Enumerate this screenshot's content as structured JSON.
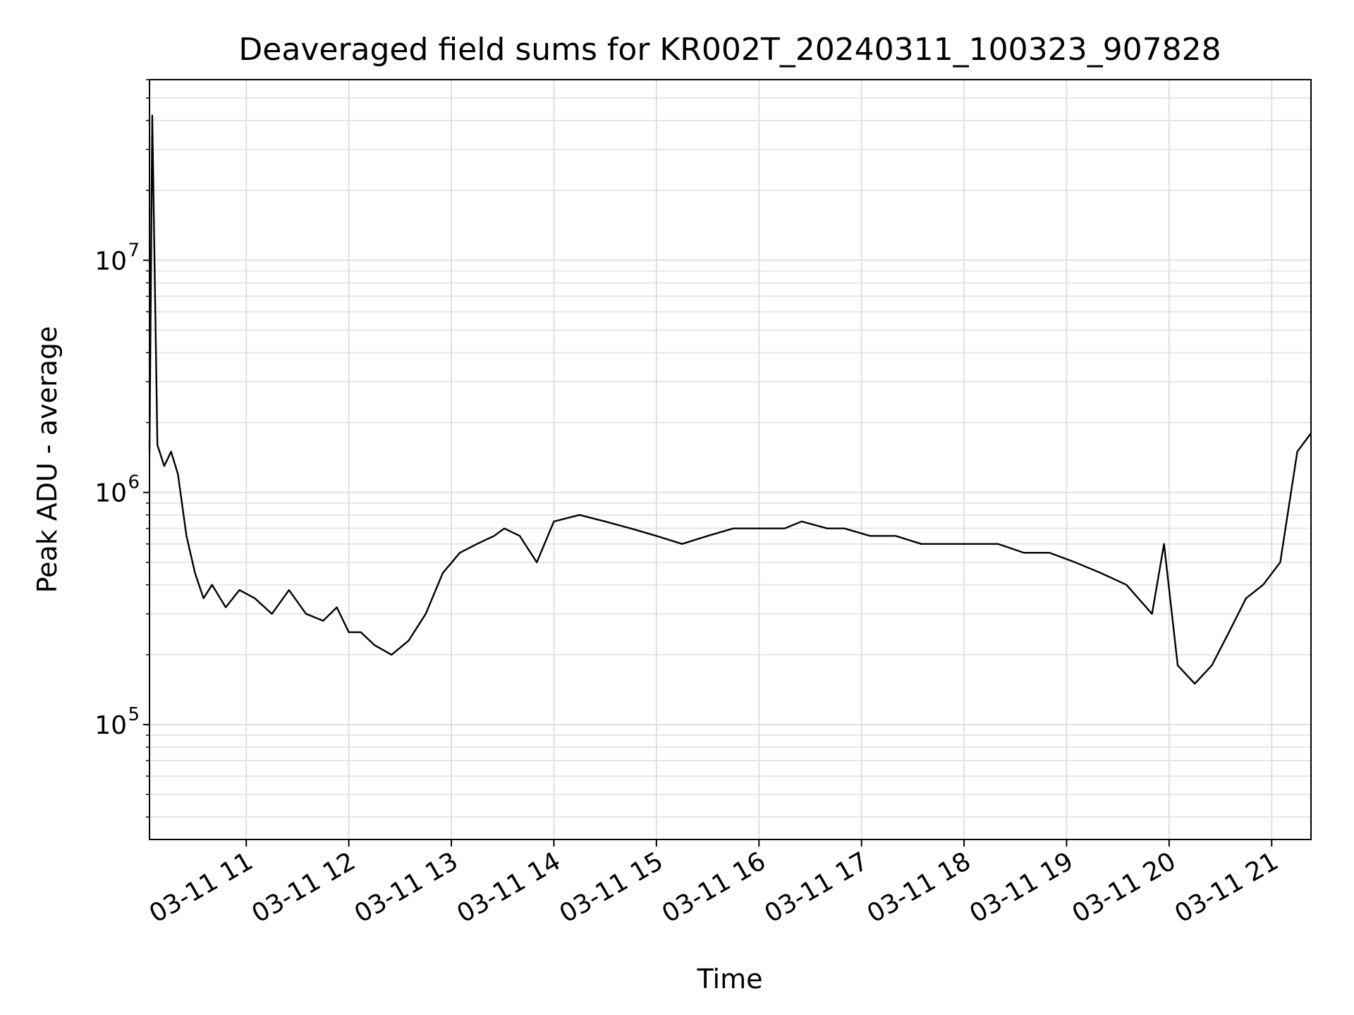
{
  "chart_data": {
    "type": "line",
    "title": "Deaveraged field sums for KR002T_20240311_100323_907828",
    "xlabel": "Time",
    "ylabel": "Peak ADU - average",
    "yscale": "log",
    "ylim": [
      32000,
      60000000
    ],
    "xlim": [
      "2024-03-11T10:03:23",
      "2024-03-11T21:23:00"
    ],
    "grid": true,
    "line_color": "#000000",
    "x_ticks": [
      "03-11 11",
      "03-11 12",
      "03-11 13",
      "03-11 14",
      "03-11 15",
      "03-11 16",
      "03-11 17",
      "03-11 18",
      "03-11 19",
      "03-11 20",
      "03-11 21"
    ],
    "y_ticks": [
      {
        "base": "10",
        "exp": "5",
        "value": 100000
      },
      {
        "base": "10",
        "exp": "6",
        "value": 1000000
      },
      {
        "base": "10",
        "exp": "7",
        "value": 10000000
      }
    ],
    "series": [
      {
        "x": [
          "2024-03-11T10:03:23",
          "2024-03-11T10:05:00",
          "2024-03-11T10:08:00",
          "2024-03-11T10:12:00",
          "2024-03-11T10:16:00",
          "2024-03-11T10:20:00",
          "2024-03-11T10:25:00",
          "2024-03-11T10:30:00",
          "2024-03-11T10:35:00",
          "2024-03-11T10:40:00",
          "2024-03-11T10:48:00",
          "2024-03-11T10:56:00",
          "2024-03-11T11:05:00",
          "2024-03-11T11:15:00",
          "2024-03-11T11:25:00",
          "2024-03-11T11:35:00",
          "2024-03-11T11:45:00",
          "2024-03-11T11:53:00",
          "2024-03-11T12:00:00",
          "2024-03-11T12:07:00",
          "2024-03-11T12:15:00",
          "2024-03-11T12:25:00",
          "2024-03-11T12:35:00",
          "2024-03-11T12:45:00",
          "2024-03-11T12:55:00",
          "2024-03-11T13:05:00",
          "2024-03-11T13:15:00",
          "2024-03-11T13:25:00",
          "2024-03-11T13:31:00",
          "2024-03-11T13:40:00",
          "2024-03-11T13:50:00",
          "2024-03-11T14:00:00",
          "2024-03-11T14:15:00",
          "2024-03-11T14:30:00",
          "2024-03-11T14:45:00",
          "2024-03-11T15:00:00",
          "2024-03-11T15:15:00",
          "2024-03-11T15:30:00",
          "2024-03-11T15:45:00",
          "2024-03-11T16:00:00",
          "2024-03-11T16:15:00",
          "2024-03-11T16:25:00",
          "2024-03-11T16:40:00",
          "2024-03-11T16:50:00",
          "2024-03-11T17:05:00",
          "2024-03-11T17:20:00",
          "2024-03-11T17:35:00",
          "2024-03-11T17:50:00",
          "2024-03-11T18:05:00",
          "2024-03-11T18:20:00",
          "2024-03-11T18:35:00",
          "2024-03-11T18:50:00",
          "2024-03-11T19:05:00",
          "2024-03-11T19:20:00",
          "2024-03-11T19:35:00",
          "2024-03-11T19:50:00",
          "2024-03-11T19:57:00",
          "2024-03-11T20:05:00",
          "2024-03-11T20:15:00",
          "2024-03-11T20:25:00",
          "2024-03-11T20:35:00",
          "2024-03-11T20:45:00",
          "2024-03-11T20:55:00",
          "2024-03-11T21:05:00",
          "2024-03-11T21:15:00",
          "2024-03-11T21:23:00"
        ],
        "y": [
          1500000,
          42000000,
          1600000,
          1300000,
          1500000,
          1200000,
          650000,
          450000,
          350000,
          400000,
          320000,
          380000,
          350000,
          300000,
          380000,
          300000,
          280000,
          320000,
          250000,
          250000,
          220000,
          200000,
          230000,
          300000,
          450000,
          550000,
          600000,
          650000,
          700000,
          650000,
          500000,
          750000,
          800000,
          750000,
          700000,
          650000,
          600000,
          650000,
          700000,
          700000,
          700000,
          750000,
          700000,
          700000,
          650000,
          650000,
          600000,
          600000,
          600000,
          600000,
          550000,
          550000,
          500000,
          450000,
          400000,
          300000,
          600000,
          180000,
          150000,
          180000,
          250000,
          350000,
          400000,
          500000,
          1500000,
          1800000
        ]
      }
    ]
  }
}
